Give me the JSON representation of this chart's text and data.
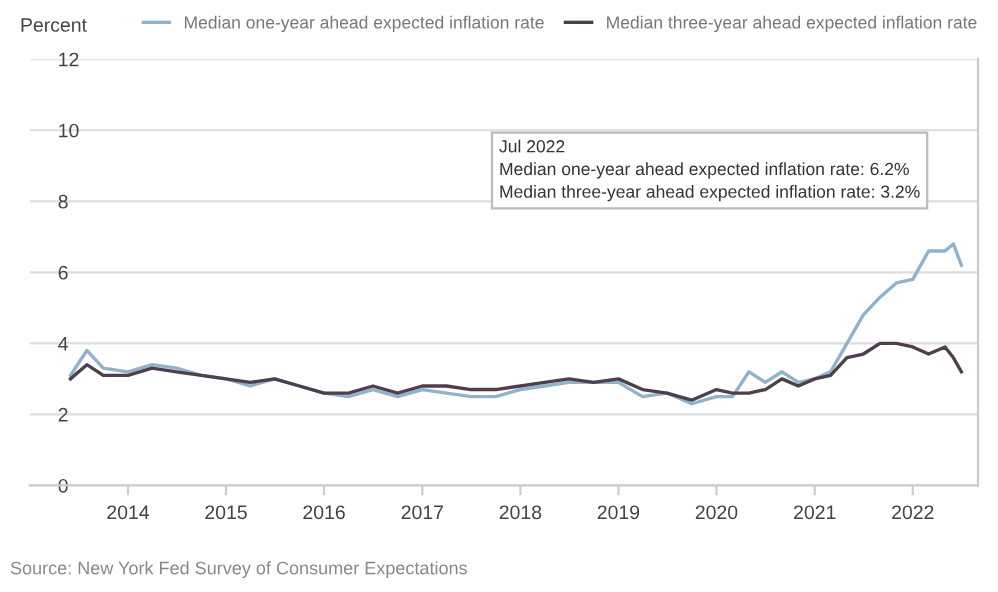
{
  "chart_data": {
    "type": "line",
    "ylabel": "Percent",
    "x": [
      "2013-06",
      "2013-08",
      "2013-10",
      "2014-01",
      "2014-04",
      "2014-07",
      "2014-10",
      "2015-01",
      "2015-04",
      "2015-07",
      "2015-10",
      "2016-01",
      "2016-04",
      "2016-07",
      "2016-10",
      "2017-01",
      "2017-04",
      "2017-07",
      "2017-10",
      "2018-01",
      "2018-04",
      "2018-07",
      "2018-10",
      "2019-01",
      "2019-04",
      "2019-07",
      "2019-10",
      "2020-01",
      "2020-03",
      "2020-05",
      "2020-07",
      "2020-09",
      "2020-11",
      "2021-01",
      "2021-03",
      "2021-05",
      "2021-07",
      "2021-09",
      "2021-11",
      "2022-01",
      "2022-03",
      "2022-05",
      "2022-06",
      "2022-07"
    ],
    "series": [
      {
        "name": "Median one-year ahead expected inflation rate",
        "color": "#8fb3cc",
        "values": [
          3.1,
          3.8,
          3.3,
          3.2,
          3.4,
          3.3,
          3.1,
          3.0,
          2.8,
          3.0,
          2.8,
          2.6,
          2.5,
          2.7,
          2.5,
          2.7,
          2.6,
          2.5,
          2.5,
          2.7,
          2.8,
          2.9,
          2.9,
          2.9,
          2.5,
          2.6,
          2.3,
          2.5,
          2.5,
          3.2,
          2.9,
          3.2,
          2.9,
          3.0,
          3.2,
          4.0,
          4.8,
          5.3,
          5.7,
          5.8,
          6.6,
          6.6,
          6.8,
          6.2
        ]
      },
      {
        "name": "Median three-year ahead expected inflation rate",
        "color": "#4e3f4e",
        "values": [
          3.0,
          3.4,
          3.1,
          3.1,
          3.3,
          3.2,
          3.1,
          3.0,
          2.9,
          3.0,
          2.8,
          2.6,
          2.6,
          2.8,
          2.6,
          2.8,
          2.8,
          2.7,
          2.7,
          2.8,
          2.9,
          3.0,
          2.9,
          3.0,
          2.7,
          2.6,
          2.4,
          2.7,
          2.6,
          2.6,
          2.7,
          3.0,
          2.8,
          3.0,
          3.1,
          3.6,
          3.7,
          4.0,
          4.0,
          3.9,
          3.7,
          3.9,
          3.6,
          3.2
        ]
      }
    ],
    "xlim": [
      "2013-01",
      "2022-09"
    ],
    "xticks": [
      "2014",
      "2015",
      "2016",
      "2017",
      "2018",
      "2019",
      "2020",
      "2021",
      "2022"
    ],
    "ylim": [
      0,
      12
    ],
    "yticks": [
      0,
      2,
      4,
      6,
      8,
      10,
      12
    ],
    "grid": "y",
    "legend": "top",
    "marker": "none",
    "line_style": "solid",
    "annotations": [
      "Jul 2022",
      "Median one-year ahead expected inflation rate: 6.2%",
      "Median three-year ahead expected inflation rate: 3.2%",
      "Source: New York Fed Survey of Consumer Expectations"
    ]
  }
}
